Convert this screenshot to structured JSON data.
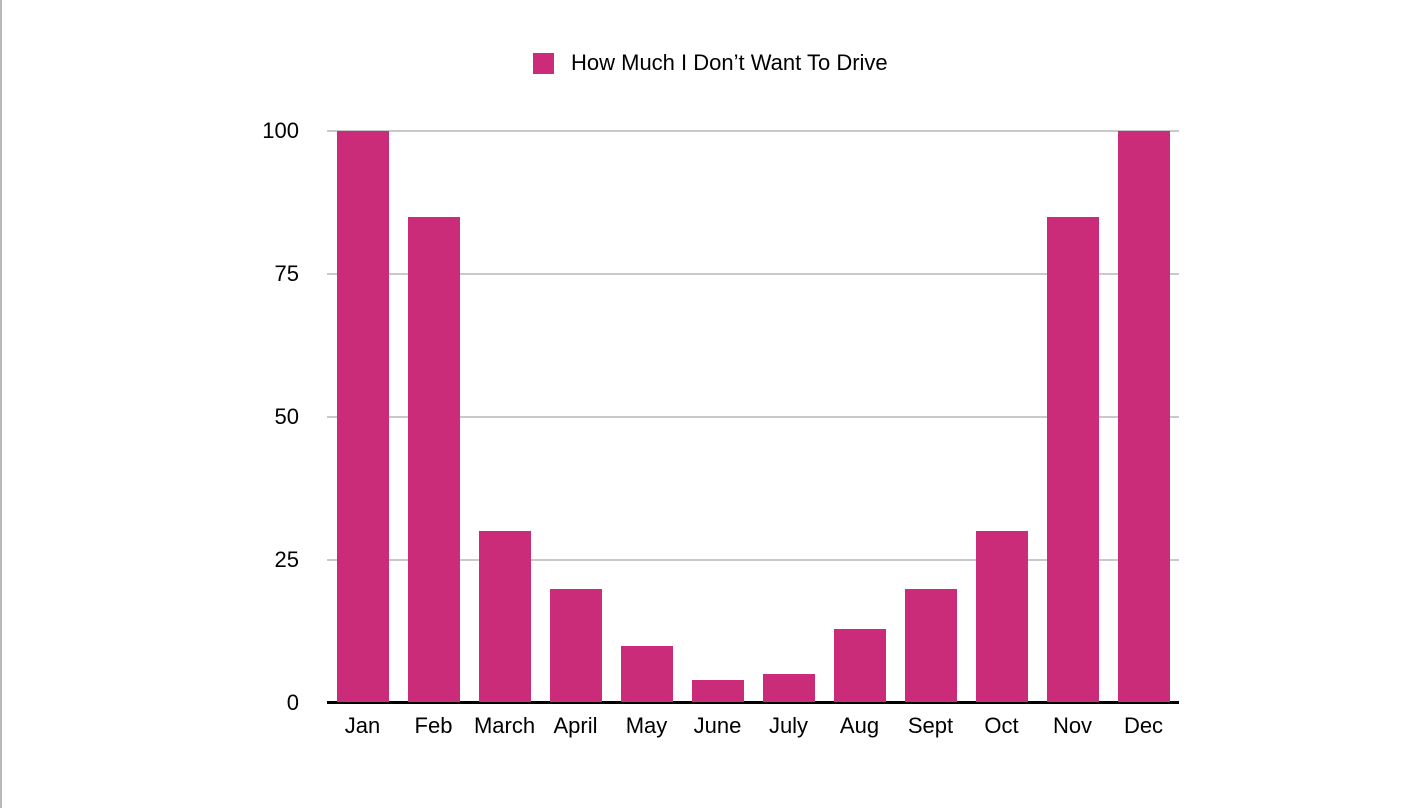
{
  "chart_data": {
    "type": "bar",
    "title": "",
    "legend_label": "How Much I Don’t Want To Drive",
    "legend_position": "top-center",
    "categories": [
      "Jan",
      "Feb",
      "March",
      "April",
      "May",
      "June",
      "July",
      "Aug",
      "Sept",
      "Oct",
      "Nov",
      "Dec"
    ],
    "values": [
      100,
      85,
      30,
      20,
      10,
      4,
      5,
      13,
      20,
      30,
      85,
      100
    ],
    "xlabel": "",
    "ylabel": "",
    "ylim": [
      0,
      100
    ],
    "yticks": [
      0,
      25,
      50,
      75,
      100
    ],
    "grid": true,
    "colors": {
      "bar": "#CA2C79",
      "gridline": "#C9C9C9",
      "axis_line": "#000000",
      "text": "#000000",
      "background": "#FFFFFF"
    }
  }
}
